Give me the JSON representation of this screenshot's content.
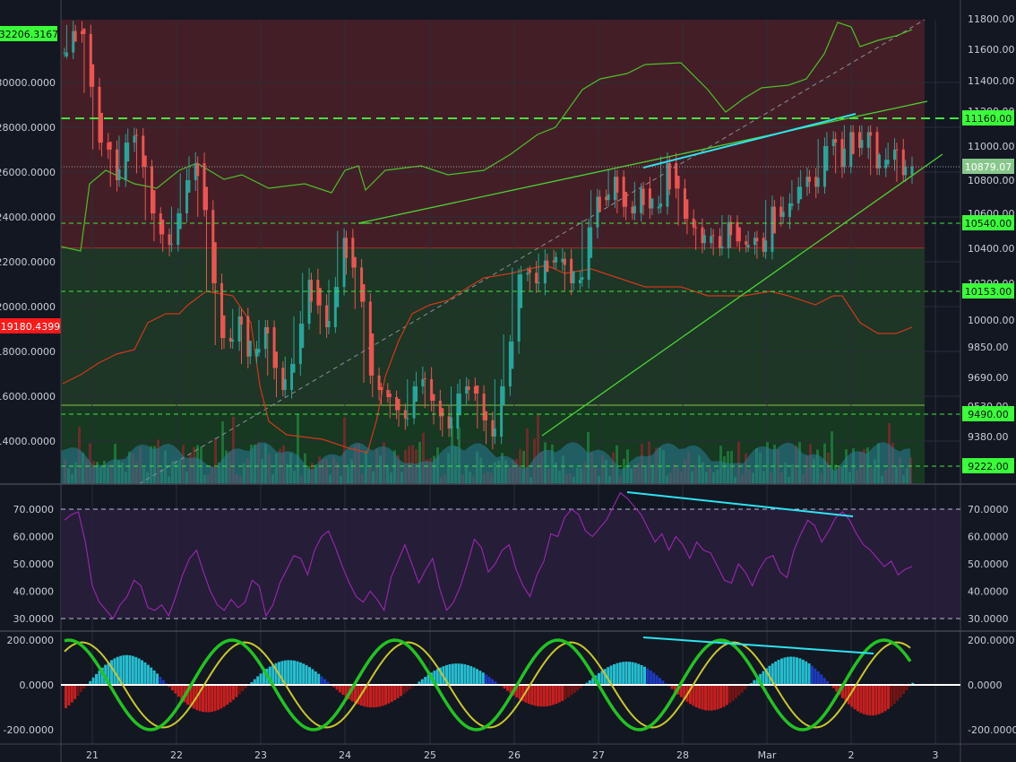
{
  "colors": {
    "background": "#131722",
    "grid": "#2a2e39",
    "candle_up": "#26a69a",
    "candle_down": "#ef5350",
    "zone_red": "#4a1f27",
    "zone_green": "#1f3a26",
    "zone_dark_green": "#173a22",
    "rsi_band": "#2a1f3d",
    "rsi_line": "#9c27b0",
    "trend_green": "#4cd137",
    "divergence": "#2de3f0",
    "level_green": "#3ee83e",
    "price_badge": "#88c78c",
    "red_badge": "#ff1a1a",
    "green_badge": "#3aff3a",
    "macd_fast": "#22c322",
    "macd_slow": "#c8c82a",
    "macd_red": "#d12020"
  },
  "chart_data": [
    {
      "type": "candlestick",
      "panel": "price",
      "x_tick_labels": [
        "21",
        "22",
        "23",
        "24",
        "25",
        "26",
        "27",
        "28",
        "Mar",
        "2",
        "3"
      ],
      "left_axis": {
        "ticks": [
          "30000.0000",
          "28000.0000",
          "26000.0000",
          "24000.0000",
          "22000.0000",
          "20000.0000",
          "18000.0000",
          "16000.0000",
          "14000.0000"
        ],
        "top_badge": "32206.3167",
        "red_badge": "19180.4399"
      },
      "right_axis": {
        "ticks": [
          "11800.00",
          "11600.00",
          "11400.00",
          "11200.00",
          "11000.00",
          "10800.00",
          "10600.00",
          "10400.00",
          "10200.00",
          "10000.00",
          "9850.00",
          "9690.00",
          "9530.00",
          "9380.00"
        ],
        "current_price": "10879.07",
        "levels": [
          "11160.00",
          "10540.00",
          "10153.00",
          "9490.00",
          "9222.00"
        ]
      },
      "price_path": [
        [
          0,
          11580
        ],
        [
          2,
          11720
        ],
        [
          4,
          11700
        ],
        [
          6,
          11360
        ],
        [
          8,
          11020
        ],
        [
          10,
          10980
        ],
        [
          12,
          10800
        ],
        [
          14,
          11020
        ],
        [
          16,
          11060
        ],
        [
          18,
          10880
        ],
        [
          20,
          10600
        ],
        [
          22,
          10480
        ],
        [
          24,
          10420
        ],
        [
          26,
          10600
        ],
        [
          28,
          10800
        ],
        [
          30,
          10900
        ],
        [
          32,
          10620
        ],
        [
          34,
          10200
        ],
        [
          36,
          9900
        ],
        [
          38,
          9880
        ],
        [
          40,
          10020
        ],
        [
          42,
          9800
        ],
        [
          44,
          9840
        ],
        [
          46,
          9960
        ],
        [
          48,
          9740
        ],
        [
          50,
          9620
        ],
        [
          52,
          9760
        ],
        [
          54,
          9980
        ],
        [
          56,
          10220
        ],
        [
          58,
          10080
        ],
        [
          60,
          9960
        ],
        [
          62,
          10180
        ],
        [
          64,
          10460
        ],
        [
          66,
          10290
        ],
        [
          68,
          10100
        ],
        [
          70,
          9700
        ],
        [
          72,
          9620
        ],
        [
          74,
          9580
        ],
        [
          76,
          9510
        ],
        [
          78,
          9470
        ],
        [
          80,
          9640
        ],
        [
          82,
          9680
        ],
        [
          84,
          9560
        ],
        [
          86,
          9480
        ],
        [
          88,
          9420
        ],
        [
          90,
          9600
        ],
        [
          92,
          9640
        ],
        [
          94,
          9600
        ],
        [
          96,
          9460
        ],
        [
          98,
          9380
        ],
        [
          100,
          9640
        ],
        [
          102,
          9880
        ],
        [
          104,
          10250
        ],
        [
          106,
          10260
        ],
        [
          108,
          10200
        ],
        [
          110,
          10330
        ],
        [
          112,
          10320
        ],
        [
          114,
          10340
        ],
        [
          116,
          10200
        ],
        [
          118,
          10220
        ],
        [
          120,
          10520
        ],
        [
          122,
          10700
        ],
        [
          124,
          10680
        ],
        [
          126,
          10820
        ],
        [
          128,
          10640
        ],
        [
          130,
          10600
        ],
        [
          132,
          10750
        ],
        [
          134,
          10630
        ],
        [
          136,
          10640
        ],
        [
          138,
          10900
        ],
        [
          140,
          10750
        ],
        [
          142,
          10570
        ],
        [
          144,
          10520
        ],
        [
          146,
          10430
        ],
        [
          148,
          10470
        ],
        [
          150,
          10400
        ],
        [
          152,
          10550
        ],
        [
          154,
          10440
        ],
        [
          156,
          10420
        ],
        [
          158,
          10460
        ],
        [
          160,
          10380
        ],
        [
          162,
          10640
        ],
        [
          164,
          10580
        ],
        [
          166,
          10660
        ],
        [
          168,
          10760
        ],
        [
          170,
          10820
        ],
        [
          172,
          10760
        ],
        [
          174,
          11000
        ],
        [
          176,
          11040
        ],
        [
          178,
          10880
        ],
        [
          180,
          11080
        ],
        [
          182,
          10990
        ],
        [
          184,
          11080
        ],
        [
          186,
          10870
        ],
        [
          188,
          10920
        ],
        [
          190,
          10980
        ],
        [
          192,
          10830
        ],
        [
          194,
          10879
        ]
      ]
    },
    {
      "type": "line",
      "panel": "rsi",
      "y_ticks": [
        "70.0000",
        "60.0000",
        "50.0000",
        "40.0000",
        "30.0000"
      ],
      "right_ticks": [
        "70.0000",
        "60.0000",
        "50.0000",
        "40.0000",
        "30.0000"
      ],
      "band": [
        30,
        70
      ],
      "values": [
        66,
        68,
        69,
        58,
        42,
        36,
        33,
        30,
        35,
        38,
        44,
        42,
        34,
        33,
        35,
        31,
        38,
        46,
        52,
        55,
        47,
        40,
        35,
        33,
        37,
        34,
        36,
        44,
        42,
        31,
        35,
        43,
        48,
        53,
        52,
        46,
        55,
        60,
        62,
        56,
        49,
        43,
        38,
        36,
        40,
        37,
        33,
        45,
        51,
        57,
        50,
        43,
        48,
        52,
        41,
        33,
        36,
        42,
        50,
        59,
        56,
        47,
        50,
        55,
        57,
        48,
        42,
        38,
        46,
        51,
        61,
        60,
        67,
        70,
        68,
        62,
        60,
        63,
        66,
        71,
        76,
        74,
        71,
        68,
        63,
        58,
        61,
        55,
        60,
        57,
        52,
        58,
        55,
        54,
        49,
        44,
        43,
        50,
        47,
        42,
        48,
        52,
        53,
        47,
        45,
        55,
        61,
        66,
        64,
        58,
        62,
        67,
        69,
        66,
        61,
        57,
        55,
        52,
        49,
        51,
        46,
        48,
        49
      ]
    },
    {
      "type": "line",
      "panel": "macd",
      "y_ticks": [
        "200.0000",
        "0.0000",
        "-200.0000"
      ],
      "right_ticks": [
        "200.0000",
        "0.0000",
        "-200.0000"
      ],
      "ylim": [
        -260,
        260
      ]
    }
  ]
}
